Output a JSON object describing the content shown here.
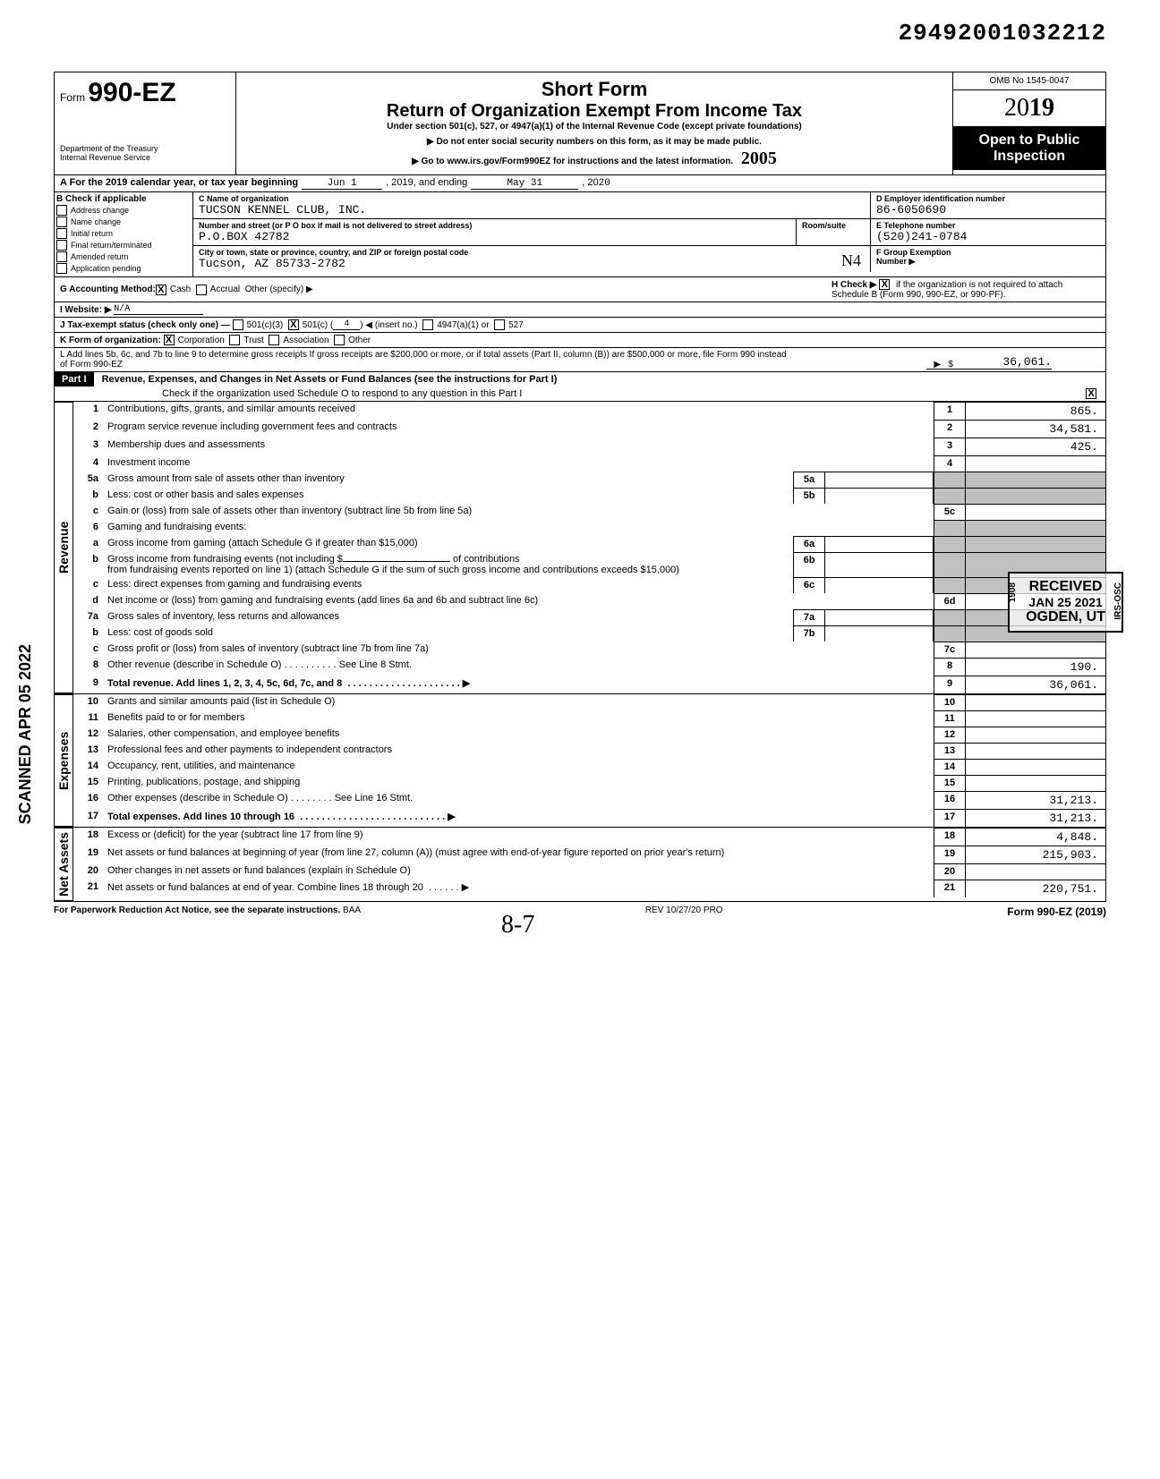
{
  "dln": "29492001032212",
  "form": {
    "prefix": "Form",
    "number": "990-EZ",
    "dept1": "Department of the Treasury",
    "dept2": "Internal Revenue Service",
    "title1": "Short Form",
    "title2": "Return of Organization Exempt From Income Tax",
    "subtitle": "Under section 501(c), 527, or 4947(a)(1) of the Internal Revenue Code (except private foundations)",
    "instr1": "▶ Do not enter social security numbers on this form, as it may be made public.",
    "instr2": "▶ Go to www.irs.gov/Form990EZ for instructions and the latest information.",
    "omb": "OMB No 1545-0047",
    "year_prefix": "20",
    "year_emph": "19",
    "open1": "Open to Public",
    "open2": "Inspection",
    "hand_mark": "2005"
  },
  "lineA": {
    "label": "A  For the 2019 calendar year, or tax year beginning",
    "begin": "Jun 1",
    "mid": ", 2019, and ending",
    "end_month": "May 31",
    "end_year_label": ", 20",
    "end_year": "20"
  },
  "colB": {
    "header": "B  Check if applicable",
    "items": [
      "Address change",
      "Name change",
      "Initial return",
      "Final return/terminated",
      "Amended return",
      "Application pending"
    ]
  },
  "entity": {
    "c_label": "C  Name of organization",
    "c_val": "TUCSON KENNEL CLUB, INC.",
    "street_label": "Number and street (or P O  box if mail is not delivered to street address)",
    "room_label": "Room/suite",
    "street_val": "P.O.BOX 42782",
    "city_label": "City or town, state or province, country, and ZIP or foreign postal code",
    "city_val": "Tucson, AZ 85733-2782",
    "city_stamp": "N4",
    "d_label": "D Employer identification number",
    "d_val": "86-6050690",
    "e_label": "E Telephone number",
    "e_val": "(520)241-0784",
    "f_label": "F Group Exemption",
    "f_label2": "Number ▶"
  },
  "lineG": {
    "label": "G  Accounting Method:",
    "opt1": "Cash",
    "opt2": "Accrual",
    "opt3": "Other (specify) ▶",
    "h_label": "H  Check ▶",
    "h_text": "if the organization is not required to attach Schedule B (Form 990, 990-EZ, or 990-PF)."
  },
  "lineI": {
    "label": "I  Website: ▶",
    "val": "N/A"
  },
  "lineJ": {
    "label": "J  Tax-exempt status (check only one) —",
    "o1": "501(c)(3)",
    "o2": "501(c) (",
    "o2_val": "4",
    "o2_suffix": ") ◀ (insert no.)",
    "o3": "4947(a)(1) or",
    "o4": "527"
  },
  "lineK": {
    "label": "K  Form of organization:",
    "o1": "Corporation",
    "o2": "Trust",
    "o3": "Association",
    "o4": "Other"
  },
  "lineL": {
    "text": "L  Add lines 5b, 6c, and 7b to line 9 to determine gross receipts  If gross receipts are $200,000 or more, or if total assets (Part II, column (B)) are $500,000 or more, file Form 990 instead of Form 990-EZ",
    "arrow_val": "36,061."
  },
  "part1": {
    "label": "Part I",
    "title": "Revenue, Expenses, and Changes in Net Assets or Fund Balances (see the instructions for Part I)",
    "check_line": "Check if the organization used Schedule O to respond to any question in this Part I"
  },
  "sections": {
    "revenue_label": "Revenue",
    "expenses_label": "Expenses",
    "netassets_label": "Net Assets"
  },
  "lines": {
    "l1": {
      "no": "1",
      "desc": "Contributions, gifts, grants, and similar amounts received",
      "box": "1",
      "val": "865."
    },
    "l2": {
      "no": "2",
      "desc": "Program service revenue including government fees and contracts",
      "box": "2",
      "val": "34,581."
    },
    "l3": {
      "no": "3",
      "desc": "Membership dues and assessments",
      "box": "3",
      "val": "425."
    },
    "l4": {
      "no": "4",
      "desc": "Investment income",
      "box": "4",
      "val": ""
    },
    "l5a": {
      "no": "5a",
      "desc": "Gross amount from sale of assets other than inventory",
      "mbox": "5a"
    },
    "l5b": {
      "no": "b",
      "desc": "Less: cost or other basis and sales expenses",
      "mbox": "5b"
    },
    "l5c": {
      "no": "c",
      "desc": "Gain or (loss) from sale of assets other than inventory (subtract line 5b from line 5a)",
      "box": "5c",
      "val": ""
    },
    "l6": {
      "no": "6",
      "desc": "Gaming and fundraising events:"
    },
    "l6a": {
      "no": "a",
      "desc": "Gross income from gaming (attach Schedule G if greater than $15,000)",
      "mbox": "6a"
    },
    "l6b": {
      "no": "b",
      "desc_pre": "Gross income from fundraising events (not including  $",
      "desc_mid": "of contributions",
      "desc2": "from fundraising events reported on line 1) (attach Schedule G if the sum of such gross income and contributions exceeds $15,000)",
      "mbox": "6b"
    },
    "l6c": {
      "no": "c",
      "desc": "Less: direct expenses from gaming and fundraising events",
      "mbox": "6c"
    },
    "l6d": {
      "no": "d",
      "desc": "Net income or (loss) from gaming and fundraising events (add lines 6a and 6b and subtract line 6c)",
      "box": "6d",
      "val": ""
    },
    "l7a": {
      "no": "7a",
      "desc": "Gross sales of inventory, less returns and allowances",
      "mbox": "7a"
    },
    "l7b": {
      "no": "b",
      "desc": "Less: cost of goods sold",
      "mbox": "7b"
    },
    "l7c": {
      "no": "c",
      "desc": "Gross profit or (loss) from sales of inventory (subtract line 7b from line 7a)",
      "box": "7c",
      "val": ""
    },
    "l8": {
      "no": "8",
      "desc": "Other revenue (describe in Schedule O) . . . . . . . . . . See Line 8 Stmt.",
      "box": "8",
      "val": "190."
    },
    "l9": {
      "no": "9",
      "desc": "Total revenue. Add lines 1, 2, 3, 4, 5c, 6d, 7c, and 8",
      "box": "9",
      "val": "36,061.",
      "bold": true
    },
    "l10": {
      "no": "10",
      "desc": "Grants and similar amounts paid (list in Schedule O)",
      "box": "10",
      "val": ""
    },
    "l11": {
      "no": "11",
      "desc": "Benefits paid to or for members",
      "box": "11",
      "val": ""
    },
    "l12": {
      "no": "12",
      "desc": "Salaries, other compensation, and employee benefits",
      "box": "12",
      "val": ""
    },
    "l13": {
      "no": "13",
      "desc": "Professional fees and other payments to independent contractors",
      "box": "13",
      "val": ""
    },
    "l14": {
      "no": "14",
      "desc": "Occupancy, rent, utilities, and maintenance",
      "box": "14",
      "val": ""
    },
    "l15": {
      "no": "15",
      "desc": "Printing, publications, postage, and shipping",
      "box": "15",
      "val": ""
    },
    "l16": {
      "no": "16",
      "desc": "Other expenses (describe in Schedule O)  . . . . . . . . See Line 16 Stmt.",
      "box": "16",
      "val": "31,213."
    },
    "l17": {
      "no": "17",
      "desc": "Total expenses. Add lines 10 through 16",
      "box": "17",
      "val": "31,213.",
      "bold": true
    },
    "l18": {
      "no": "18",
      "desc": "Excess or (deficit) for the year (subtract line 17 from line 9)",
      "box": "18",
      "val": "4,848."
    },
    "l19": {
      "no": "19",
      "desc": "Net assets or fund balances at beginning of year (from line 27, column (A)) (must agree with end-of-year figure reported on prior year's return)",
      "box": "19",
      "val": "215,903."
    },
    "l20": {
      "no": "20",
      "desc": "Other changes in net assets or fund balances (explain in Schedule O)",
      "box": "20",
      "val": ""
    },
    "l21": {
      "no": "21",
      "desc": "Net assets or fund balances at end of year. Combine lines 18 through 20",
      "box": "21",
      "val": "220,751."
    }
  },
  "footer": {
    "left": "For Paperwork Reduction Act Notice, see the separate instructions.",
    "baa": "BAA",
    "mid": "REV 10/27/20 PRO",
    "right": "Form 990-EZ (2019)"
  },
  "stamp": {
    "line1": "RECEIVED",
    "line2": "JAN 25 2021",
    "line3": "OGDEN, UT",
    "side1": "1908",
    "side2": "IRS-OSC"
  },
  "side_scan": "SCANNED APR 05 2022",
  "hand_bottom": "8-7",
  "colors": {
    "black": "#000000",
    "white": "#ffffff",
    "shade": "#c0c0c0"
  }
}
